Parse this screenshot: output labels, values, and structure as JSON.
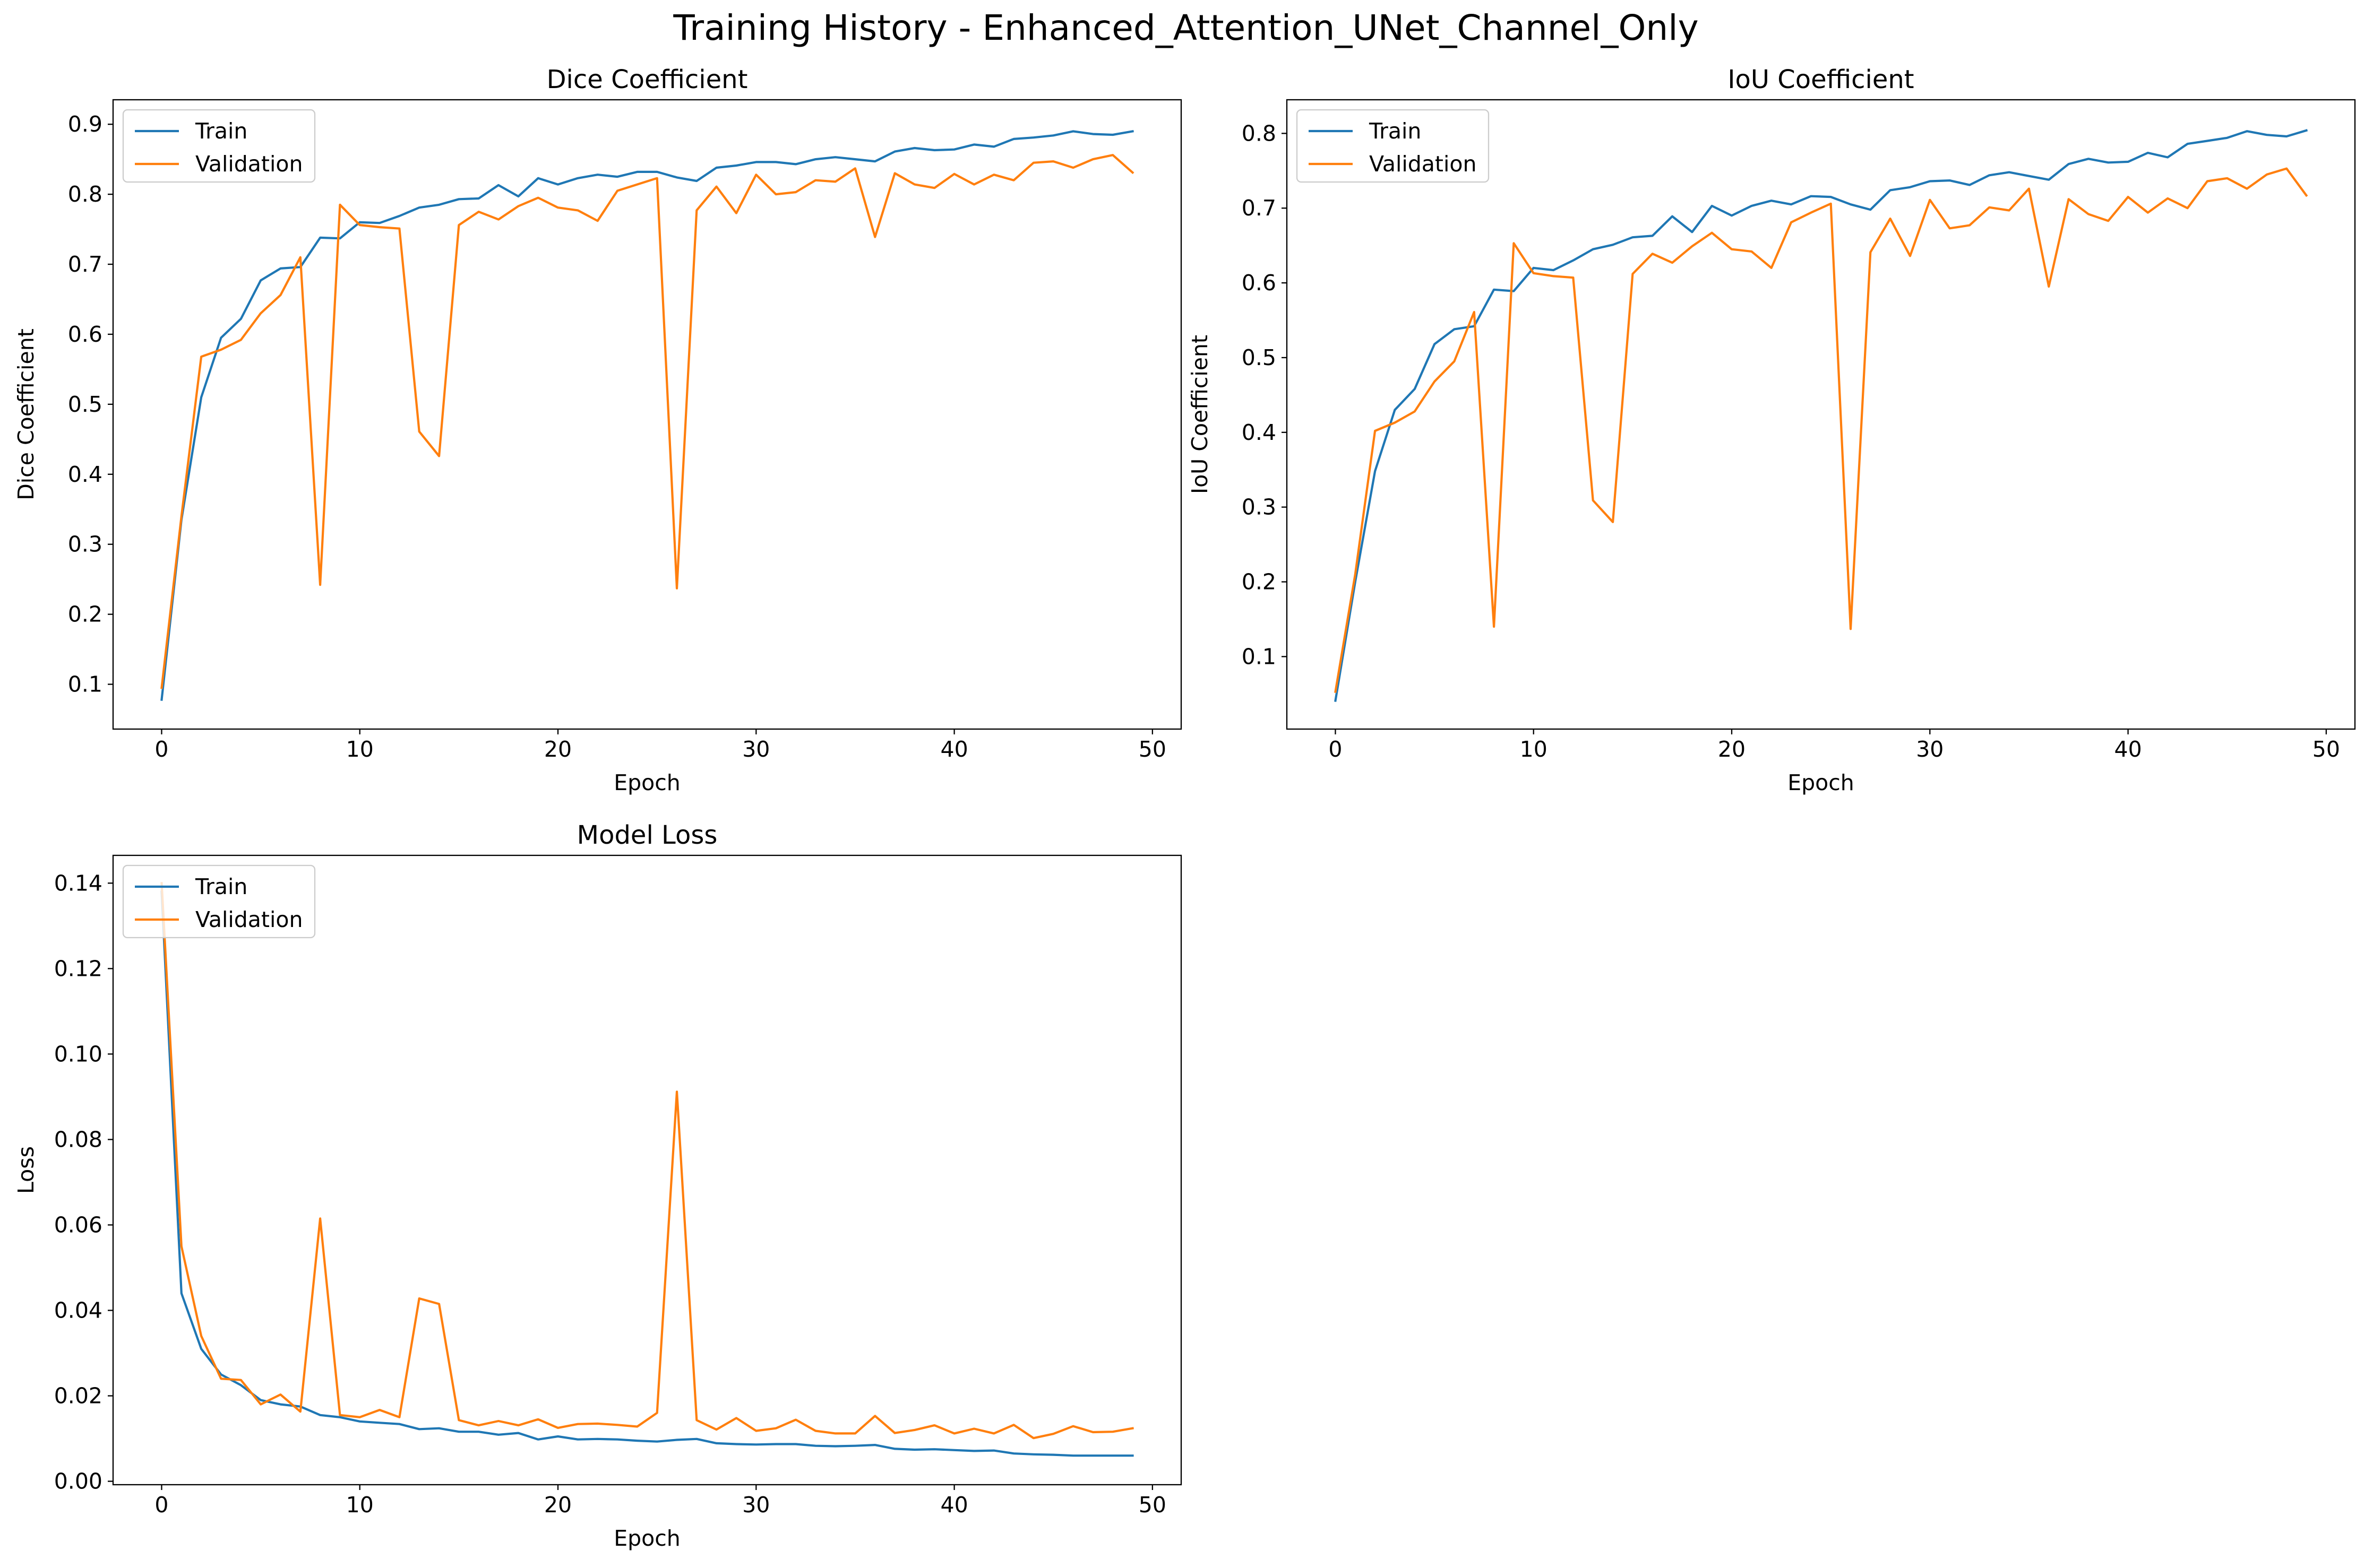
{
  "figure": {
    "suptitle": "Training History - Enhanced_Attention_UNet_Channel_Only"
  },
  "colors": {
    "train": "#1f77b4",
    "validation": "#ff7f0e",
    "axes": "#000000",
    "background": "#ffffff"
  },
  "chart_data": [
    {
      "id": "dice",
      "type": "line",
      "title": "Dice Coefficient",
      "xlabel": "Epoch",
      "ylabel": "Dice Coefficient",
      "xlim": [
        -2.45,
        51.45
      ],
      "ylim": [
        0.036,
        0.935
      ],
      "xticks": [
        0,
        10,
        20,
        30,
        40,
        50
      ],
      "yticks": [
        0.1,
        0.2,
        0.3,
        0.4,
        0.5,
        0.6,
        0.7,
        0.8,
        0.9
      ],
      "ytick_labels": [
        "0.1",
        "0.2",
        "0.3",
        "0.4",
        "0.5",
        "0.6",
        "0.7",
        "0.8",
        "0.9"
      ],
      "legend": "upper-left",
      "grid": false,
      "series": [
        {
          "name": "Train",
          "color": "#1f77b4",
          "x": [
            0,
            1,
            2,
            3,
            4,
            5,
            6,
            7,
            8,
            9,
            10,
            11,
            12,
            13,
            14,
            15,
            16,
            17,
            18,
            19,
            20,
            21,
            22,
            23,
            24,
            25,
            26,
            27,
            28,
            29,
            30,
            31,
            32,
            33,
            34,
            35,
            36,
            37,
            38,
            39,
            40,
            41,
            42,
            43,
            44,
            45,
            46,
            47,
            48,
            49
          ],
          "values": [
            0.078,
            0.335,
            0.51,
            0.595,
            0.622,
            0.677,
            0.694,
            0.696,
            0.738,
            0.737,
            0.76,
            0.759,
            0.769,
            0.781,
            0.785,
            0.793,
            0.794,
            0.813,
            0.797,
            0.823,
            0.814,
            0.823,
            0.828,
            0.825,
            0.832,
            0.832,
            0.824,
            0.819,
            0.838,
            0.841,
            0.846,
            0.846,
            0.843,
            0.85,
            0.853,
            0.85,
            0.847,
            0.861,
            0.866,
            0.863,
            0.864,
            0.871,
            0.868,
            0.879,
            0.881,
            0.884,
            0.89,
            0.886,
            0.885,
            0.89
          ]
        },
        {
          "name": "Validation",
          "color": "#ff7f0e",
          "x": [
            0,
            1,
            2,
            3,
            4,
            5,
            6,
            7,
            8,
            9,
            10,
            11,
            12,
            13,
            14,
            15,
            16,
            17,
            18,
            19,
            20,
            21,
            22,
            23,
            24,
            25,
            26,
            27,
            28,
            29,
            30,
            31,
            32,
            33,
            34,
            35,
            36,
            37,
            38,
            39,
            40,
            41,
            42,
            43,
            44,
            45,
            46,
            47,
            48,
            49
          ],
          "values": [
            0.095,
            0.34,
            0.568,
            0.578,
            0.592,
            0.63,
            0.656,
            0.71,
            0.242,
            0.785,
            0.756,
            0.753,
            0.751,
            0.461,
            0.426,
            0.756,
            0.775,
            0.764,
            0.783,
            0.795,
            0.781,
            0.777,
            0.762,
            0.805,
            0.814,
            0.823,
            0.237,
            0.777,
            0.811,
            0.773,
            0.828,
            0.8,
            0.803,
            0.82,
            0.818,
            0.837,
            0.739,
            0.83,
            0.814,
            0.809,
            0.829,
            0.814,
            0.828,
            0.82,
            0.845,
            0.847,
            0.838,
            0.85,
            0.856,
            0.831
          ]
        }
      ]
    },
    {
      "id": "iou",
      "type": "line",
      "title": "IoU Coefficient",
      "xlabel": "Epoch",
      "ylabel": "IoU Coefficient",
      "xlim": [
        -2.45,
        51.45
      ],
      "ylim": [
        0.003,
        0.845
      ],
      "xticks": [
        0,
        10,
        20,
        30,
        40,
        50
      ],
      "yticks": [
        0.1,
        0.2,
        0.3,
        0.4,
        0.5,
        0.6,
        0.7,
        0.8
      ],
      "ytick_labels": [
        "0.1",
        "0.2",
        "0.3",
        "0.4",
        "0.5",
        "0.6",
        "0.7",
        "0.8"
      ],
      "legend": "upper-left",
      "grid": false,
      "series": [
        {
          "name": "Train",
          "color": "#1f77b4",
          "x": [
            0,
            1,
            2,
            3,
            4,
            5,
            6,
            7,
            8,
            9,
            10,
            11,
            12,
            13,
            14,
            15,
            16,
            17,
            18,
            19,
            20,
            21,
            22,
            23,
            24,
            25,
            26,
            27,
            28,
            29,
            30,
            31,
            32,
            33,
            34,
            35,
            36,
            37,
            38,
            39,
            40,
            41,
            42,
            43,
            44,
            45,
            46,
            47,
            48,
            49
          ],
          "values": [
            0.041,
            0.2,
            0.348,
            0.43,
            0.458,
            0.518,
            0.538,
            0.542,
            0.591,
            0.589,
            0.62,
            0.617,
            0.63,
            0.645,
            0.651,
            0.661,
            0.663,
            0.689,
            0.668,
            0.703,
            0.69,
            0.703,
            0.71,
            0.705,
            0.716,
            0.715,
            0.705,
            0.698,
            0.724,
            0.728,
            0.736,
            0.737,
            0.731,
            0.744,
            0.748,
            0.743,
            0.738,
            0.759,
            0.766,
            0.761,
            0.762,
            0.774,
            0.768,
            0.786,
            0.79,
            0.794,
            0.803,
            0.798,
            0.796,
            0.804
          ]
        },
        {
          "name": "Validation",
          "color": "#ff7f0e",
          "x": [
            0,
            1,
            2,
            3,
            4,
            5,
            6,
            7,
            8,
            9,
            10,
            11,
            12,
            13,
            14,
            15,
            16,
            17,
            18,
            19,
            20,
            21,
            22,
            23,
            24,
            25,
            26,
            27,
            28,
            29,
            30,
            31,
            32,
            33,
            34,
            35,
            36,
            37,
            38,
            39,
            40,
            41,
            42,
            43,
            44,
            45,
            46,
            47,
            48,
            49
          ],
          "values": [
            0.053,
            0.21,
            0.402,
            0.413,
            0.428,
            0.468,
            0.495,
            0.561,
            0.14,
            0.653,
            0.613,
            0.609,
            0.607,
            0.309,
            0.28,
            0.612,
            0.639,
            0.627,
            0.649,
            0.667,
            0.645,
            0.642,
            0.62,
            0.681,
            0.694,
            0.706,
            0.137,
            0.641,
            0.686,
            0.636,
            0.711,
            0.673,
            0.677,
            0.701,
            0.697,
            0.726,
            0.595,
            0.712,
            0.692,
            0.683,
            0.715,
            0.694,
            0.713,
            0.7,
            0.736,
            0.74,
            0.726,
            0.745,
            0.753,
            0.717
          ]
        }
      ]
    },
    {
      "id": "loss",
      "type": "line",
      "title": "Model Loss",
      "xlabel": "Epoch",
      "ylabel": "Loss",
      "xlim": [
        -2.45,
        51.45
      ],
      "ylim": [
        -0.0008,
        0.1465
      ],
      "xticks": [
        0,
        10,
        20,
        30,
        40,
        50
      ],
      "yticks": [
        0.0,
        0.02,
        0.04,
        0.06,
        0.08,
        0.1,
        0.12,
        0.14
      ],
      "ytick_labels": [
        "0.00",
        "0.02",
        "0.04",
        "0.06",
        "0.08",
        "0.10",
        "0.12",
        "0.14"
      ],
      "legend": "upper-left",
      "grid": false,
      "series": [
        {
          "name": "Train",
          "color": "#1f77b4",
          "x": [
            0,
            1,
            2,
            3,
            4,
            5,
            6,
            7,
            8,
            9,
            10,
            11,
            12,
            13,
            14,
            15,
            16,
            17,
            18,
            19,
            20,
            21,
            22,
            23,
            24,
            25,
            26,
            27,
            28,
            29,
            30,
            31,
            32,
            33,
            34,
            35,
            36,
            37,
            38,
            39,
            40,
            41,
            42,
            43,
            44,
            45,
            46,
            47,
            48,
            49
          ],
          "values": [
            0.138,
            0.044,
            0.031,
            0.025,
            0.0225,
            0.019,
            0.018,
            0.0175,
            0.0155,
            0.015,
            0.014,
            0.0137,
            0.0134,
            0.0122,
            0.0124,
            0.0116,
            0.0116,
            0.0109,
            0.0113,
            0.0098,
            0.0105,
            0.0098,
            0.0099,
            0.0098,
            0.0095,
            0.0093,
            0.0097,
            0.0099,
            0.0089,
            0.0087,
            0.0086,
            0.0087,
            0.0087,
            0.0083,
            0.0082,
            0.0083,
            0.0085,
            0.0076,
            0.0074,
            0.0075,
            0.0073,
            0.0071,
            0.0072,
            0.0065,
            0.0063,
            0.0062,
            0.006,
            0.006,
            0.006,
            0.006
          ]
        },
        {
          "name": "Validation",
          "color": "#ff7f0e",
          "x": [
            0,
            1,
            2,
            3,
            4,
            5,
            6,
            7,
            8,
            9,
            10,
            11,
            12,
            13,
            14,
            15,
            16,
            17,
            18,
            19,
            20,
            21,
            22,
            23,
            24,
            25,
            26,
            27,
            28,
            29,
            30,
            31,
            32,
            33,
            34,
            35,
            36,
            37,
            38,
            39,
            40,
            41,
            42,
            43,
            44,
            45,
            46,
            47,
            48,
            49
          ],
          "values": [
            0.14,
            0.055,
            0.034,
            0.024,
            0.0237,
            0.018,
            0.0203,
            0.0163,
            0.0615,
            0.0155,
            0.015,
            0.0167,
            0.015,
            0.0428,
            0.0415,
            0.0143,
            0.0131,
            0.0141,
            0.0131,
            0.0145,
            0.0125,
            0.0134,
            0.0135,
            0.0132,
            0.0128,
            0.016,
            0.0912,
            0.0143,
            0.0121,
            0.0148,
            0.0118,
            0.0124,
            0.0144,
            0.0118,
            0.0112,
            0.0112,
            0.0153,
            0.0113,
            0.012,
            0.0131,
            0.0112,
            0.0123,
            0.0112,
            0.0132,
            0.0101,
            0.0111,
            0.0129,
            0.0115,
            0.0116,
            0.0124
          ]
        }
      ]
    }
  ]
}
